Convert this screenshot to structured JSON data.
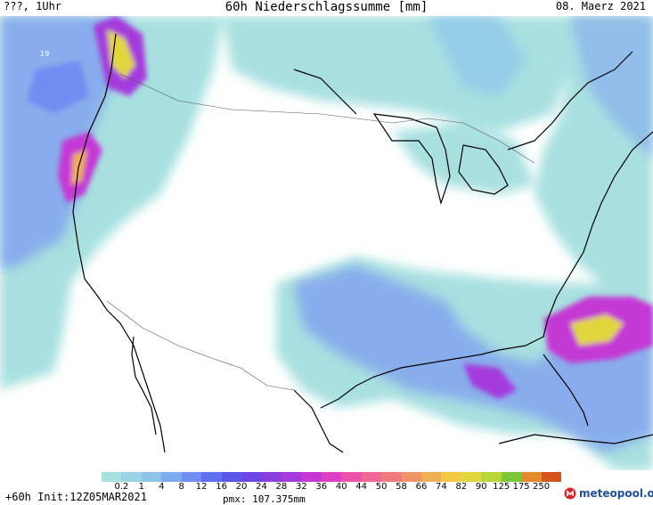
{
  "header": {
    "left": "???, 1Uhr",
    "title": "60h Niederschlagssumme [mm]",
    "date": "08. Maerz 2021"
  },
  "map": {
    "marker_label": "19",
    "feature_icon": "precipitation-map"
  },
  "legend": {
    "labels": [
      "0.2",
      "1",
      "4",
      "8",
      "12",
      "16",
      "20",
      "24",
      "28",
      "32",
      "36",
      "40",
      "44",
      "50",
      "58",
      "66",
      "74",
      "82",
      "90",
      "125",
      "175",
      "250"
    ],
    "colors": [
      "#a8e0e0",
      "#9ad4e4",
      "#8cc4ec",
      "#7eaaf0",
      "#6e8ef2",
      "#5e70f0",
      "#5a56ea",
      "#6c46e6",
      "#8a3ee0",
      "#a43adc",
      "#c438d4",
      "#dc3ec4",
      "#ea52ac",
      "#f06694",
      "#ee7c7c",
      "#f09468",
      "#f2ae52",
      "#f4c842",
      "#e2d63c",
      "#b8d63a",
      "#7cc63a",
      "#e28a2c",
      "#d4541c"
    ]
  },
  "footer": {
    "init": "+60h  Init:12Z05MAR2021",
    "pmx": "pmx: 107.375mm"
  },
  "brand": {
    "name": "meteopool.org",
    "icon": "meteopool-logo-icon",
    "color": "#1f4fa0",
    "accent": "#d6262c"
  }
}
